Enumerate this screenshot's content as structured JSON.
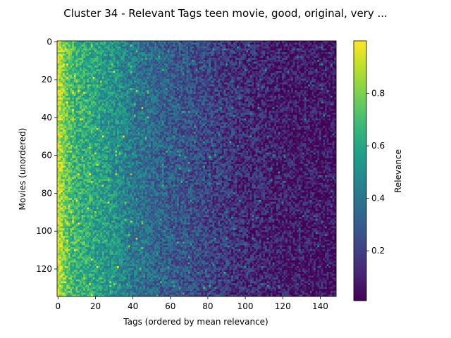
{
  "chart_data": {
    "type": "heatmap",
    "title": "Cluster 34 - Relevant Tags teen movie, good, original, very ...",
    "xlabel": "Tags (ordered by mean relevance)",
    "ylabel": "Movies (unordered)",
    "n_cols": 149,
    "n_rows": 135,
    "xlim": [
      -0.5,
      148.5
    ],
    "ylim": [
      134.5,
      -0.5
    ],
    "x_ticks": [
      0,
      20,
      40,
      60,
      80,
      100,
      120,
      140
    ],
    "y_ticks": [
      0,
      20,
      40,
      60,
      80,
      100,
      120
    ],
    "colormap": "viridis",
    "colorbar": {
      "label": "Relevance",
      "range": [
        0.01,
        1.0
      ],
      "ticks": [
        0.2,
        0.4,
        0.6,
        0.8
      ]
    },
    "relevance_profile": {
      "description": "per-tag mean relevance, decreasing with tag rank",
      "tag_index": [
        0,
        5,
        10,
        20,
        30,
        40,
        60,
        80,
        100,
        120,
        148
      ],
      "mean_relevance": [
        0.92,
        0.74,
        0.66,
        0.6,
        0.52,
        0.42,
        0.3,
        0.22,
        0.14,
        0.09,
        0.05
      ]
    }
  }
}
